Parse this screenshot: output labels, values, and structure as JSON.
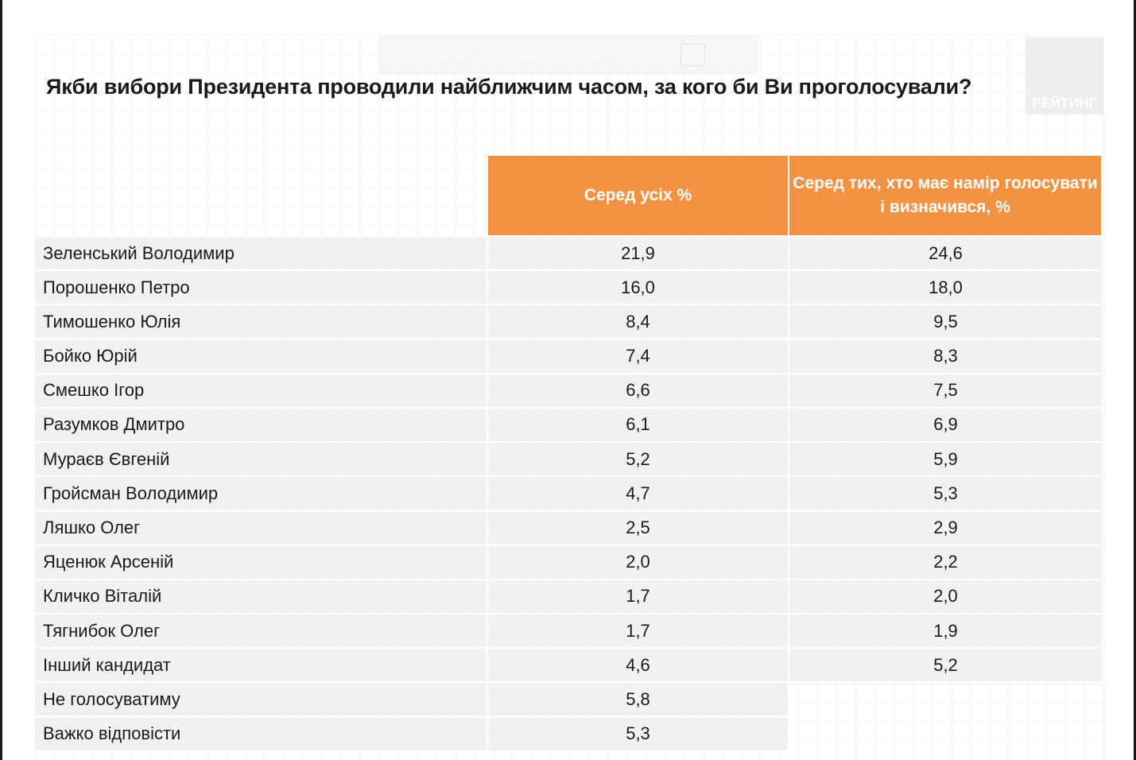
{
  "overlay": {
    "message": "Чтобы выйти из полноэкранного режима, нажмите",
    "key": "Esc"
  },
  "logo": {
    "text": "РЕЙТИНГ"
  },
  "chart_data": {
    "type": "table",
    "title": "Якби вибори Президента проводили найближчим часом, за кого би Ви проголосували?",
    "columns": [
      "Серед усіх %",
      "Серед тих, хто має намір голосувати і визначився, %"
    ],
    "rows": [
      {
        "name": "Зеленський Володимир",
        "all": "21,9",
        "decided": "24,6"
      },
      {
        "name": "Порошенко Петро",
        "all": "16,0",
        "decided": "18,0"
      },
      {
        "name": "Тимошенко Юлія",
        "all": "8,4",
        "decided": "9,5"
      },
      {
        "name": "Бойко Юрій",
        "all": "7,4",
        "decided": "8,3"
      },
      {
        "name": "Смешко Ігор",
        "all": "6,6",
        "decided": "7,5"
      },
      {
        "name": "Разумков Дмитро",
        "all": "6,1",
        "decided": "6,9"
      },
      {
        "name": "Мураєв Євгеній",
        "all": "5,2",
        "decided": "5,9"
      },
      {
        "name": "Гройсман Володимир",
        "all": "4,7",
        "decided": "5,3"
      },
      {
        "name": "Ляшко Олег",
        "all": "2,5",
        "decided": "2,9"
      },
      {
        "name": "Яценюк Арсеній",
        "all": "2,0",
        "decided": "2,2"
      },
      {
        "name": "Кличко Віталій",
        "all": "1,7",
        "decided": "2,0"
      },
      {
        "name": "Тягнибок Олег",
        "all": "1,7",
        "decided": "1,9"
      },
      {
        "name": "Інший кандидат",
        "all": "4,6",
        "decided": "5,2"
      },
      {
        "name": "Не голосуватиму",
        "all": "5,8",
        "decided": null
      },
      {
        "name": "Важко відповісти",
        "all": "5,3",
        "decided": null
      }
    ],
    "header_color": "#f49243",
    "row_color": "#f1f1f1"
  }
}
